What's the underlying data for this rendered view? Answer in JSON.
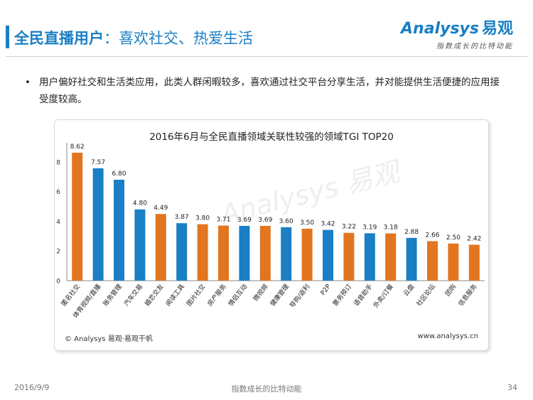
{
  "header": {
    "title_main": "全民直播用户",
    "title_sub": "：喜欢社交、热爱生活",
    "brand_logo": "Analysys",
    "brand_cn": "易观",
    "brand_slogan": "指数成长的比特动能"
  },
  "bullet_text": "用户偏好社交和生活类应用，此类人群闲暇较多，喜欢通过社交平台分享生活，并对能提供生活便捷的应用接受度较高。",
  "chart_data": {
    "type": "bar",
    "title": "2016年6月与全民直播领域关联性较强的领域TGI TOP20",
    "categories": [
      "匿名社交",
      "体育视频/直播",
      "账务管理",
      "汽车交易",
      "婚恋交友",
      "阅读工具",
      "图片社交",
      "房产服务",
      "情侣互动",
      "微视频",
      "健康管理",
      "导购/返利",
      "P2P",
      "票务预订",
      "语音助手",
      "外卖/订餐",
      "云盘",
      "社区论坛",
      "团购",
      "信息服务"
    ],
    "values": [
      8.62,
      7.57,
      6.8,
      4.8,
      4.49,
      3.87,
      3.8,
      3.71,
      3.69,
      3.69,
      3.6,
      3.5,
      3.42,
      3.22,
      3.19,
      3.18,
      2.88,
      2.66,
      2.5,
      2.42
    ],
    "value_labels": [
      "8.62",
      "7.57",
      "6.80",
      "4.80",
      "4.49",
      "3.87",
      "3.80",
      "3.71",
      "3.69",
      "3.69",
      "3.60",
      "3.50",
      "3.42",
      "3.22",
      "3.19",
      "3.18",
      "2.88",
      "2.66",
      "2.50",
      "2.42"
    ],
    "bar_colors": [
      "orange",
      "blue",
      "blue",
      "blue",
      "orange",
      "blue",
      "orange",
      "orange",
      "blue",
      "orange",
      "blue",
      "orange",
      "blue",
      "orange",
      "blue",
      "orange",
      "blue",
      "orange",
      "orange",
      "orange"
    ],
    "colors": {
      "blue": "#1a7fc4",
      "orange": "#e2751f"
    },
    "yticks": [
      "0",
      "2",
      "4",
      "6",
      "8"
    ],
    "ylim": [
      0,
      9
    ],
    "grid": false
  },
  "chart_source": "© Analysys 易观·易观干帆",
  "chart_website": "www.analysys.cn",
  "watermark": "Analysys 易观",
  "footer": {
    "date": "2016/9/9",
    "slogan": "指数成长的比特动能",
    "page": "34"
  }
}
